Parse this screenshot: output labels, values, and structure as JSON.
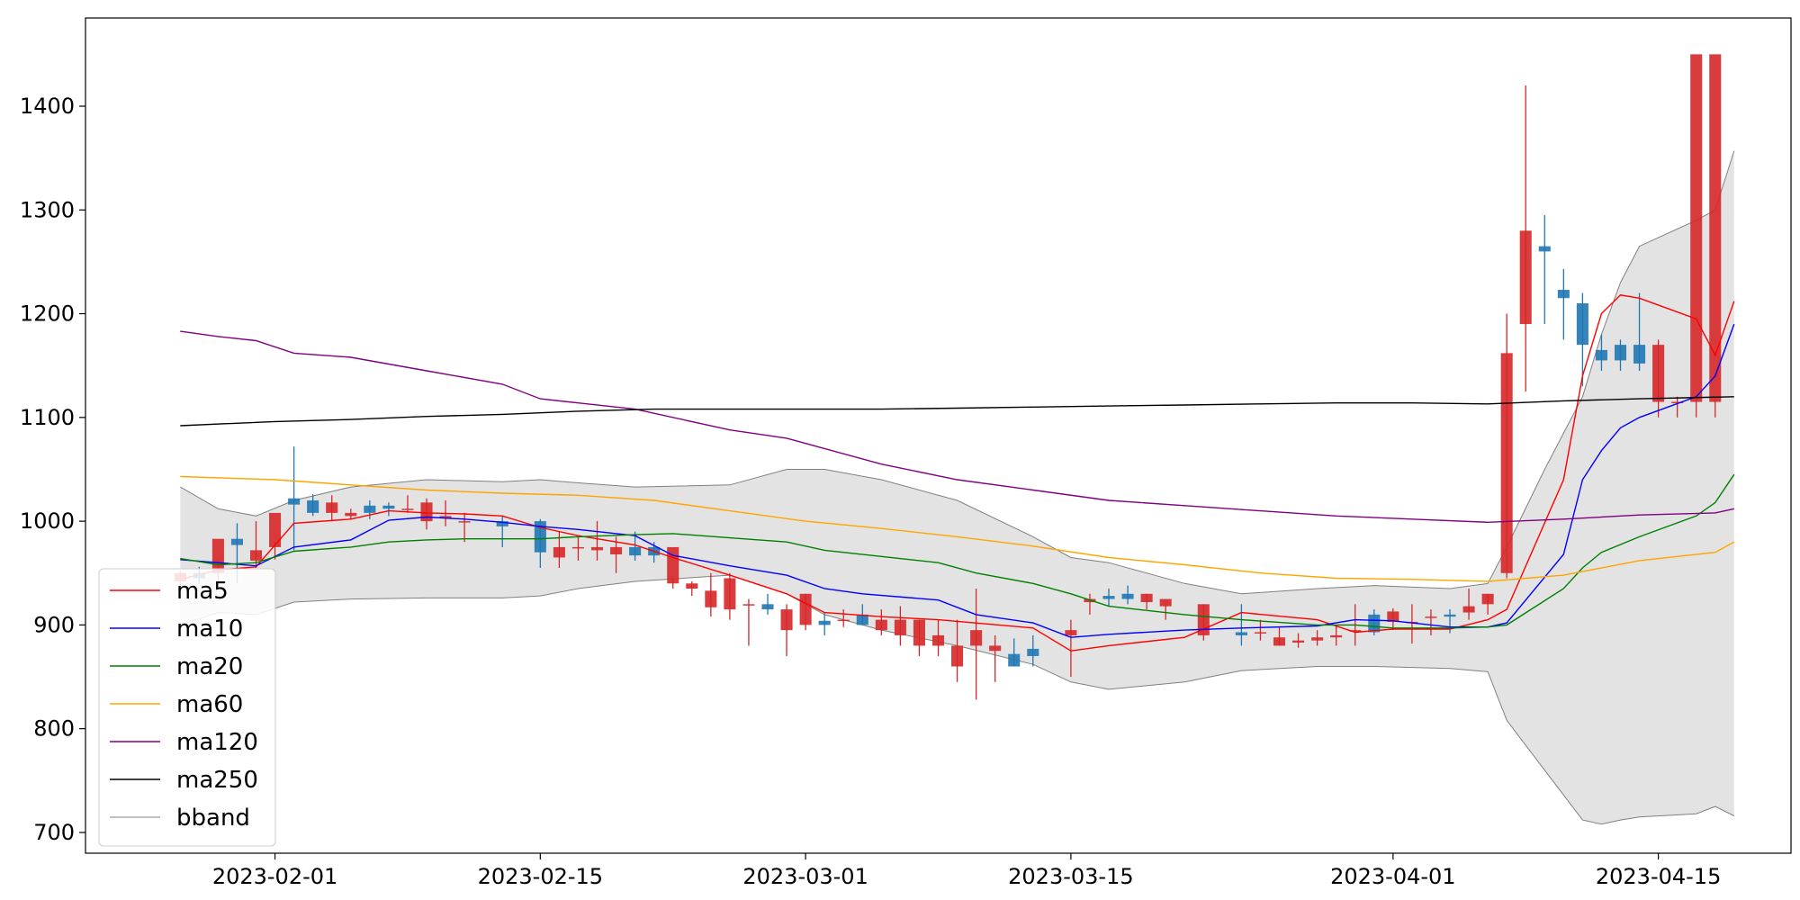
{
  "chart_data": {
    "type": "candlestick",
    "title": "",
    "xlabel": "",
    "ylabel": "",
    "xlim": [
      "2023-01-22",
      "2023-04-22"
    ],
    "ylim": [
      680,
      1485
    ],
    "x_ticks": [
      "2023-02-01",
      "2023-02-15",
      "2023-03-01",
      "2023-03-15",
      "2023-04-01",
      "2023-04-15"
    ],
    "y_ticks": [
      700,
      800,
      900,
      1000,
      1100,
      1200,
      1300,
      1400
    ],
    "legend_position": "lower-left",
    "colors": {
      "up": "#d62728",
      "down": "#1f77b4",
      "ma5": "#ff0000",
      "ma10": "#0000ff",
      "ma20": "#008000",
      "ma60": "#ffa500",
      "ma120": "#800080",
      "ma250": "#000000",
      "bband_fill": "#d9d9d9",
      "bband_line": "#808080"
    },
    "candles": {
      "dates": [
        "2023-01-27",
        "2023-01-28",
        "2023-01-29",
        "2023-01-30",
        "2023-01-31",
        "2023-02-01",
        "2023-02-02",
        "2023-02-03",
        "2023-02-04",
        "2023-02-05",
        "2023-02-06",
        "2023-02-07",
        "2023-02-08",
        "2023-02-09",
        "2023-02-10",
        "2023-02-11",
        "2023-02-13",
        "2023-02-15",
        "2023-02-16",
        "2023-02-17",
        "2023-02-18",
        "2023-02-19",
        "2023-02-20",
        "2023-02-21",
        "2023-02-22",
        "2023-02-23",
        "2023-02-24",
        "2023-02-25",
        "2023-02-26",
        "2023-02-27",
        "2023-02-28",
        "2023-03-01",
        "2023-03-02",
        "2023-03-03",
        "2023-03-04",
        "2023-03-05",
        "2023-03-06",
        "2023-03-07",
        "2023-03-08",
        "2023-03-09",
        "2023-03-10",
        "2023-03-11",
        "2023-03-12",
        "2023-03-13",
        "2023-03-15",
        "2023-03-16",
        "2023-03-17",
        "2023-03-18",
        "2023-03-19",
        "2023-03-20",
        "2023-03-22",
        "2023-03-24",
        "2023-03-25",
        "2023-03-26",
        "2023-03-27",
        "2023-03-28",
        "2023-03-29",
        "2023-03-30",
        "2023-03-31",
        "2023-04-01",
        "2023-04-02",
        "2023-04-03",
        "2023-04-04",
        "2023-04-05",
        "2023-04-06",
        "2023-04-07",
        "2023-04-08",
        "2023-04-09",
        "2023-04-10",
        "2023-04-11",
        "2023-04-12",
        "2023-04-13",
        "2023-04-14",
        "2023-04-15",
        "2023-04-16",
        "2023-04-17",
        "2023-04-18"
      ],
      "open": [
        942,
        950,
        950,
        983,
        962,
        975,
        1022,
        1020,
        1008,
        1005,
        1015,
        1015,
        1012,
        1000,
        1003,
        1000,
        1000,
        1000,
        965,
        975,
        972,
        968,
        975,
        975,
        940,
        935,
        917,
        915,
        920,
        920,
        895,
        900,
        904,
        904,
        910,
        895,
        890,
        880,
        880,
        860,
        880,
        875,
        872,
        877,
        890,
        922,
        928,
        930,
        922,
        918,
        890,
        893,
        893,
        880,
        883,
        885,
        888,
        895,
        910,
        903,
        903,
        908,
        910,
        912,
        920,
        950,
        1190,
        1265,
        1223,
        1210,
        1165,
        1170,
        1170,
        1115,
        1115,
        1115,
        1115
      ],
      "high": [
        952,
        956,
        962,
        998,
        1000,
        980,
        1072,
        1026,
        1025,
        1012,
        1020,
        1018,
        1025,
        1022,
        1020,
        1008,
        1005,
        1002,
        990,
        985,
        1000,
        985,
        990,
        980,
        945,
        942,
        950,
        950,
        925,
        930,
        920,
        930,
        912,
        915,
        920,
        915,
        918,
        905,
        905,
        905,
        935,
        890,
        887,
        890,
        905,
        930,
        935,
        938,
        930,
        922,
        920,
        920,
        905,
        898,
        892,
        895,
        900,
        920,
        915,
        916,
        920,
        915,
        915,
        935,
        930,
        1200,
        1420,
        1295,
        1243,
        1220,
        1180,
        1175,
        1220,
        1175,
        1120,
        1120,
        1120
      ],
      "low": [
        936,
        940,
        942,
        940,
        955,
        963,
        972,
        1005,
        1000,
        1002,
        1002,
        1005,
        1008,
        992,
        995,
        980,
        975,
        955,
        955,
        962,
        962,
        950,
        962,
        960,
        935,
        928,
        908,
        905,
        880,
        910,
        870,
        895,
        890,
        898,
        900,
        890,
        880,
        870,
        870,
        845,
        828,
        845,
        860,
        860,
        850,
        910,
        918,
        920,
        915,
        905,
        885,
        880,
        885,
        880,
        878,
        880,
        880,
        880,
        890,
        895,
        882,
        890,
        892,
        905,
        910,
        945,
        1125,
        1190,
        1175,
        1130,
        1145,
        1145,
        1145,
        1100,
        1100,
        1100,
        1100
      ],
      "close": [
        950,
        945,
        983,
        977,
        972,
        1008,
        1016,
        1008,
        1018,
        1008,
        1008,
        1012,
        1012,
        1018,
        1005,
        1000,
        995,
        970,
        975,
        975,
        975,
        975,
        967,
        967,
        975,
        940,
        933,
        945,
        920,
        915,
        915,
        930,
        900,
        905,
        900,
        905,
        905,
        905,
        890,
        880,
        895,
        880,
        860,
        870,
        895,
        925,
        925,
        925,
        930,
        925,
        920,
        890,
        893,
        888,
        885,
        888,
        890,
        895,
        893,
        913,
        903,
        908,
        908,
        918,
        930,
        1162,
        1280,
        1260,
        1215,
        1170,
        1155,
        1155,
        1152,
        1170,
        1115,
        1450,
        1450
      ]
    },
    "series": [
      {
        "name": "ma5",
        "x": [
          "2023-01-27",
          "2023-01-29",
          "2023-01-31",
          "2023-02-02",
          "2023-02-05",
          "2023-02-07",
          "2023-02-09",
          "2023-02-11",
          "2023-02-13",
          "2023-02-15",
          "2023-02-17",
          "2023-02-20",
          "2023-02-22",
          "2023-02-25",
          "2023-02-28",
          "2023-03-02",
          "2023-03-05",
          "2023-03-08",
          "2023-03-13",
          "2023-03-15",
          "2023-03-17",
          "2023-03-21",
          "2023-03-24",
          "2023-03-28",
          "2023-03-30",
          "2023-04-01",
          "2023-04-04",
          "2023-04-06",
          "2023-04-07",
          "2023-04-10",
          "2023-04-11",
          "2023-04-12",
          "2023-04-13",
          "2023-04-14",
          "2023-04-17",
          "2023-04-18",
          "2023-04-19"
        ],
        "y": [
          944,
          953,
          956,
          998,
          1002,
          1010,
          1008,
          1007,
          1005,
          994,
          986,
          977,
          965,
          948,
          930,
          912,
          908,
          905,
          897,
          875,
          880,
          888,
          912,
          905,
          893,
          896,
          896,
          905,
          915,
          1040,
          1140,
          1200,
          1218,
          1215,
          1195,
          1160,
          1212
        ]
      },
      {
        "name": "ma10",
        "x": [
          "2023-01-27",
          "2023-01-29",
          "2023-01-31",
          "2023-02-02",
          "2023-02-05",
          "2023-02-07",
          "2023-02-09",
          "2023-02-11",
          "2023-02-13",
          "2023-02-15",
          "2023-02-17",
          "2023-02-20",
          "2023-02-22",
          "2023-02-25",
          "2023-02-28",
          "2023-03-02",
          "2023-03-04",
          "2023-03-08",
          "2023-03-10",
          "2023-03-13",
          "2023-03-15",
          "2023-03-17",
          "2023-03-21",
          "2023-03-24",
          "2023-03-28",
          "2023-03-30",
          "2023-04-01",
          "2023-04-04",
          "2023-04-06",
          "2023-04-07",
          "2023-04-10",
          "2023-04-11",
          "2023-04-12",
          "2023-04-13",
          "2023-04-14",
          "2023-04-17",
          "2023-04-18",
          "2023-04-19"
        ],
        "y": [
          963,
          960,
          957,
          975,
          982,
          1001,
          1004,
          1002,
          999,
          995,
          992,
          986,
          967,
          957,
          948,
          935,
          930,
          924,
          910,
          902,
          888,
          891,
          895,
          897,
          899,
          905,
          904,
          898,
          898,
          902,
          968,
          1040,
          1068,
          1090,
          1100,
          1120,
          1140,
          1190
        ]
      },
      {
        "name": "ma20",
        "x": [
          "2023-01-27",
          "2023-01-29",
          "2023-01-31",
          "2023-02-02",
          "2023-02-05",
          "2023-02-07",
          "2023-02-09",
          "2023-02-11",
          "2023-02-13",
          "2023-02-15",
          "2023-02-17",
          "2023-02-20",
          "2023-02-22",
          "2023-02-25",
          "2023-02-28",
          "2023-03-02",
          "2023-03-05",
          "2023-03-08",
          "2023-03-10",
          "2023-03-13",
          "2023-03-15",
          "2023-03-17",
          "2023-03-21",
          "2023-03-24",
          "2023-03-28",
          "2023-03-30",
          "2023-04-01",
          "2023-04-04",
          "2023-04-06",
          "2023-04-07",
          "2023-04-10",
          "2023-04-11",
          "2023-04-12",
          "2023-04-14",
          "2023-04-17",
          "2023-04-18",
          "2023-04-19"
        ],
        "y": [
          964,
          958,
          960,
          971,
          975,
          980,
          982,
          983,
          983,
          983,
          985,
          987,
          988,
          984,
          980,
          972,
          966,
          960,
          950,
          940,
          930,
          918,
          910,
          905,
          900,
          900,
          897,
          897,
          898,
          900,
          935,
          955,
          970,
          985,
          1005,
          1018,
          1045
        ]
      },
      {
        "name": "ma60",
        "x": [
          "2023-01-27",
          "2023-02-01",
          "2023-02-05",
          "2023-02-09",
          "2023-02-13",
          "2023-02-17",
          "2023-02-21",
          "2023-02-25",
          "2023-03-01",
          "2023-03-05",
          "2023-03-09",
          "2023-03-13",
          "2023-03-17",
          "2023-03-21",
          "2023-03-25",
          "2023-03-29",
          "2023-04-02",
          "2023-04-06",
          "2023-04-10",
          "2023-04-14",
          "2023-04-18",
          "2023-04-19"
        ],
        "y": [
          1043,
          1040,
          1035,
          1030,
          1027,
          1025,
          1020,
          1010,
          1000,
          993,
          985,
          976,
          965,
          958,
          950,
          945,
          944,
          942,
          948,
          962,
          970,
          980
        ]
      },
      {
        "name": "ma120",
        "x": [
          "2023-01-27",
          "2023-01-29",
          "2023-01-31",
          "2023-02-02",
          "2023-02-05",
          "2023-02-09",
          "2023-02-13",
          "2023-02-15",
          "2023-02-17",
          "2023-02-20",
          "2023-02-25",
          "2023-02-28",
          "2023-03-02",
          "2023-03-05",
          "2023-03-09",
          "2023-03-13",
          "2023-03-17",
          "2023-03-21",
          "2023-03-25",
          "2023-03-29",
          "2023-04-02",
          "2023-04-06",
          "2023-04-10",
          "2023-04-14",
          "2023-04-18",
          "2023-04-19"
        ],
        "y": [
          1183,
          1178,
          1174,
          1162,
          1158,
          1145,
          1132,
          1118,
          1114,
          1108,
          1088,
          1080,
          1070,
          1055,
          1040,
          1030,
          1020,
          1015,
          1010,
          1005,
          1002,
          999,
          1002,
          1006,
          1008,
          1012
        ]
      },
      {
        "name": "ma250",
        "x": [
          "2023-01-27",
          "2023-02-01",
          "2023-02-05",
          "2023-02-09",
          "2023-02-13",
          "2023-02-17",
          "2023-02-21",
          "2023-02-25",
          "2023-03-01",
          "2023-03-05",
          "2023-03-09",
          "2023-03-13",
          "2023-03-17",
          "2023-03-21",
          "2023-03-25",
          "2023-03-29",
          "2023-04-02",
          "2023-04-06",
          "2023-04-10",
          "2023-04-14",
          "2023-04-19"
        ],
        "y": [
          1092,
          1096,
          1098,
          1101,
          1103,
          1106,
          1108,
          1108,
          1108,
          1108,
          1109,
          1110,
          1111,
          1112,
          1113,
          1114,
          1114,
          1113,
          1116,
          1118,
          1120
        ]
      },
      {
        "name": "bband",
        "x": [
          "2023-01-27",
          "2023-01-29",
          "2023-01-31",
          "2023-02-02",
          "2023-02-05",
          "2023-02-09",
          "2023-02-13",
          "2023-02-15",
          "2023-02-17",
          "2023-02-20",
          "2023-02-25",
          "2023-02-28",
          "2023-03-02",
          "2023-03-05",
          "2023-03-09",
          "2023-03-13",
          "2023-03-15",
          "2023-03-17",
          "2023-03-21",
          "2023-03-24",
          "2023-03-28",
          "2023-03-31",
          "2023-04-04",
          "2023-04-06",
          "2023-04-07",
          "2023-04-09",
          "2023-04-11",
          "2023-04-12",
          "2023-04-13",
          "2023-04-14",
          "2023-04-17",
          "2023-04-18",
          "2023-04-19"
        ],
        "upper": [
          1033,
          1012,
          1005,
          1020,
          1033,
          1040,
          1038,
          1040,
          1037,
          1033,
          1035,
          1050,
          1050,
          1040,
          1020,
          985,
          965,
          960,
          940,
          930,
          935,
          938,
          935,
          940,
          975,
          1050,
          1120,
          1180,
          1230,
          1265,
          1290,
          1300,
          1357
        ],
        "lower": [
          900,
          912,
          910,
          922,
          925,
          926,
          926,
          928,
          935,
          942,
          948,
          930,
          910,
          895,
          880,
          862,
          845,
          838,
          845,
          856,
          860,
          860,
          858,
          855,
          808,
          760,
          712,
          708,
          712,
          715,
          718,
          725,
          716
        ]
      }
    ]
  }
}
